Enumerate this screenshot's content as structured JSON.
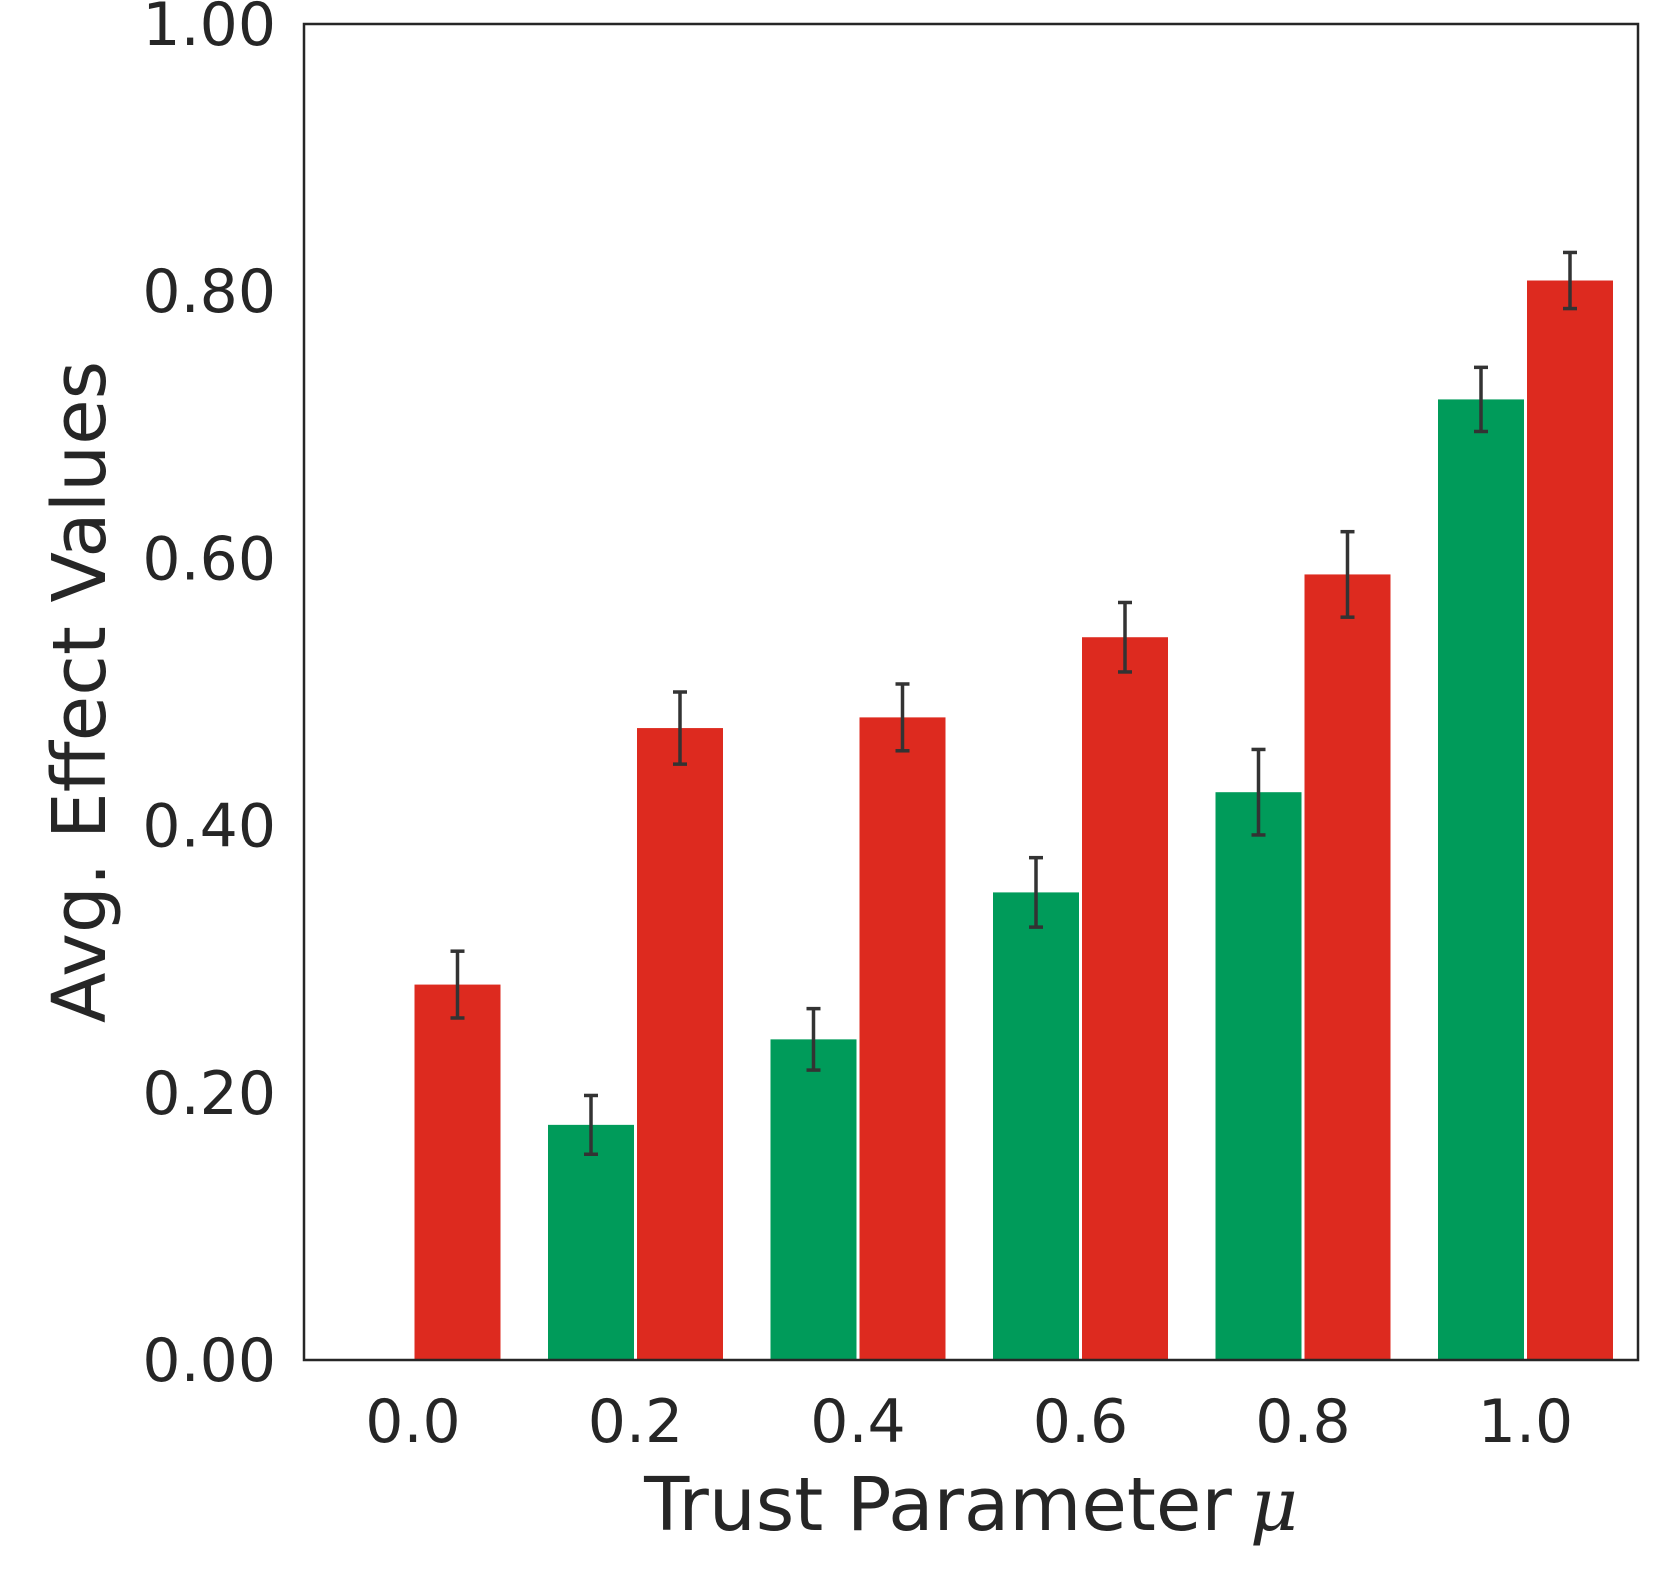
{
  "chart_data": {
    "type": "bar",
    "title": "",
    "xlabel": "Trust Parameter",
    "xlabel_symbol": "μ",
    "ylabel": "Avg. Effect Values",
    "categories": [
      "0.0",
      "0.2",
      "0.4",
      "0.6",
      "0.8",
      "1.0"
    ],
    "yticks": [
      "0.00",
      "0.20",
      "0.40",
      "0.60",
      "0.80",
      "1.00"
    ],
    "ylim": [
      0,
      1.0
    ],
    "grid": false,
    "legend": "none",
    "series": [
      {
        "color": "#009b5a",
        "values": [
          0.0,
          0.176,
          0.24,
          0.35,
          0.425,
          0.719
        ],
        "errors": [
          0.0,
          0.022,
          0.023,
          0.026,
          0.032,
          0.024
        ]
      },
      {
        "color": "#dd2a1f",
        "values": [
          0.281,
          0.473,
          0.481,
          0.541,
          0.588,
          0.808
        ],
        "errors": [
          0.025,
          0.027,
          0.025,
          0.026,
          0.032,
          0.021
        ]
      }
    ],
    "error_color": "#333333"
  }
}
